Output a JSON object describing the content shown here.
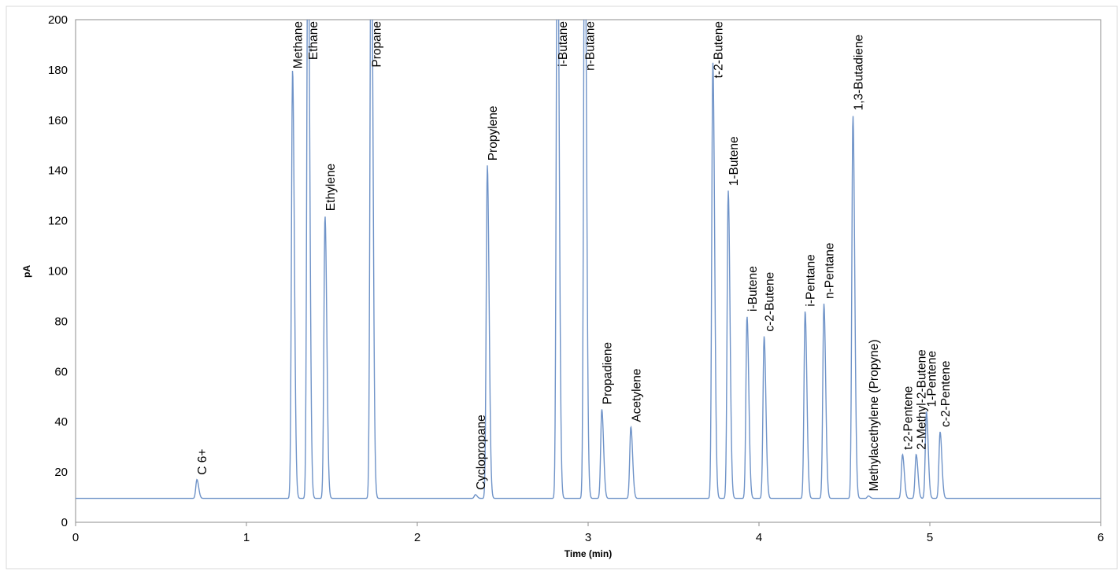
{
  "chart_data": {
    "type": "line",
    "xlabel": "Time (min)",
    "ylabel": "pA",
    "xlim": [
      0,
      6
    ],
    "ylim": [
      0,
      200
    ],
    "x_ticks": [
      0,
      1,
      2,
      3,
      4,
      5,
      6
    ],
    "y_ticks": [
      0,
      20,
      40,
      60,
      80,
      100,
      120,
      140,
      160,
      180,
      200
    ],
    "grid": false,
    "legend": "none",
    "line_color": "#6f93c8",
    "baseline": 9.5,
    "peaks": [
      {
        "x": 0.71,
        "height": 17,
        "label": "C 6+"
      },
      {
        "x": 1.27,
        "height": 180,
        "label": "Methane"
      },
      {
        "x": 1.36,
        "height": 250,
        "label": "Ethane"
      },
      {
        "x": 1.46,
        "height": 122,
        "label": "Ethylene"
      },
      {
        "x": 1.73,
        "height": 260,
        "label": "Propane"
      },
      {
        "x": 2.34,
        "height": 11,
        "label": "Cyclopropane"
      },
      {
        "x": 2.41,
        "height": 142,
        "label": "Propylene"
      },
      {
        "x": 2.82,
        "height": 260,
        "label": "i-Butane"
      },
      {
        "x": 2.98,
        "height": 260,
        "label": "n-Butane"
      },
      {
        "x": 3.08,
        "height": 45,
        "label": "Propadiene"
      },
      {
        "x": 3.25,
        "height": 38,
        "label": "Acetylene"
      },
      {
        "x": 3.73,
        "height": 183,
        "label": "t-2-Butene"
      },
      {
        "x": 3.82,
        "height": 132,
        "label": "1-Butene"
      },
      {
        "x": 3.93,
        "height": 82,
        "label": "i-Butene"
      },
      {
        "x": 4.03,
        "height": 74,
        "label": "c-2-Butene"
      },
      {
        "x": 4.27,
        "height": 84,
        "label": "i-Pentane"
      },
      {
        "x": 4.38,
        "height": 87,
        "label": "n-Pentane"
      },
      {
        "x": 4.55,
        "height": 162,
        "label": "1,3-Butadiene"
      },
      {
        "x": 4.64,
        "height": 10.5,
        "label": "Methylacethylene (Propyne)"
      },
      {
        "x": 4.84,
        "height": 27,
        "label": "t-2-Pentene"
      },
      {
        "x": 4.92,
        "height": 27,
        "label": "2-Methyl-2-Butene"
      },
      {
        "x": 4.98,
        "height": 44,
        "label": "1-Pentene"
      },
      {
        "x": 5.06,
        "height": 36,
        "label": "c-2-Pentene"
      }
    ]
  }
}
